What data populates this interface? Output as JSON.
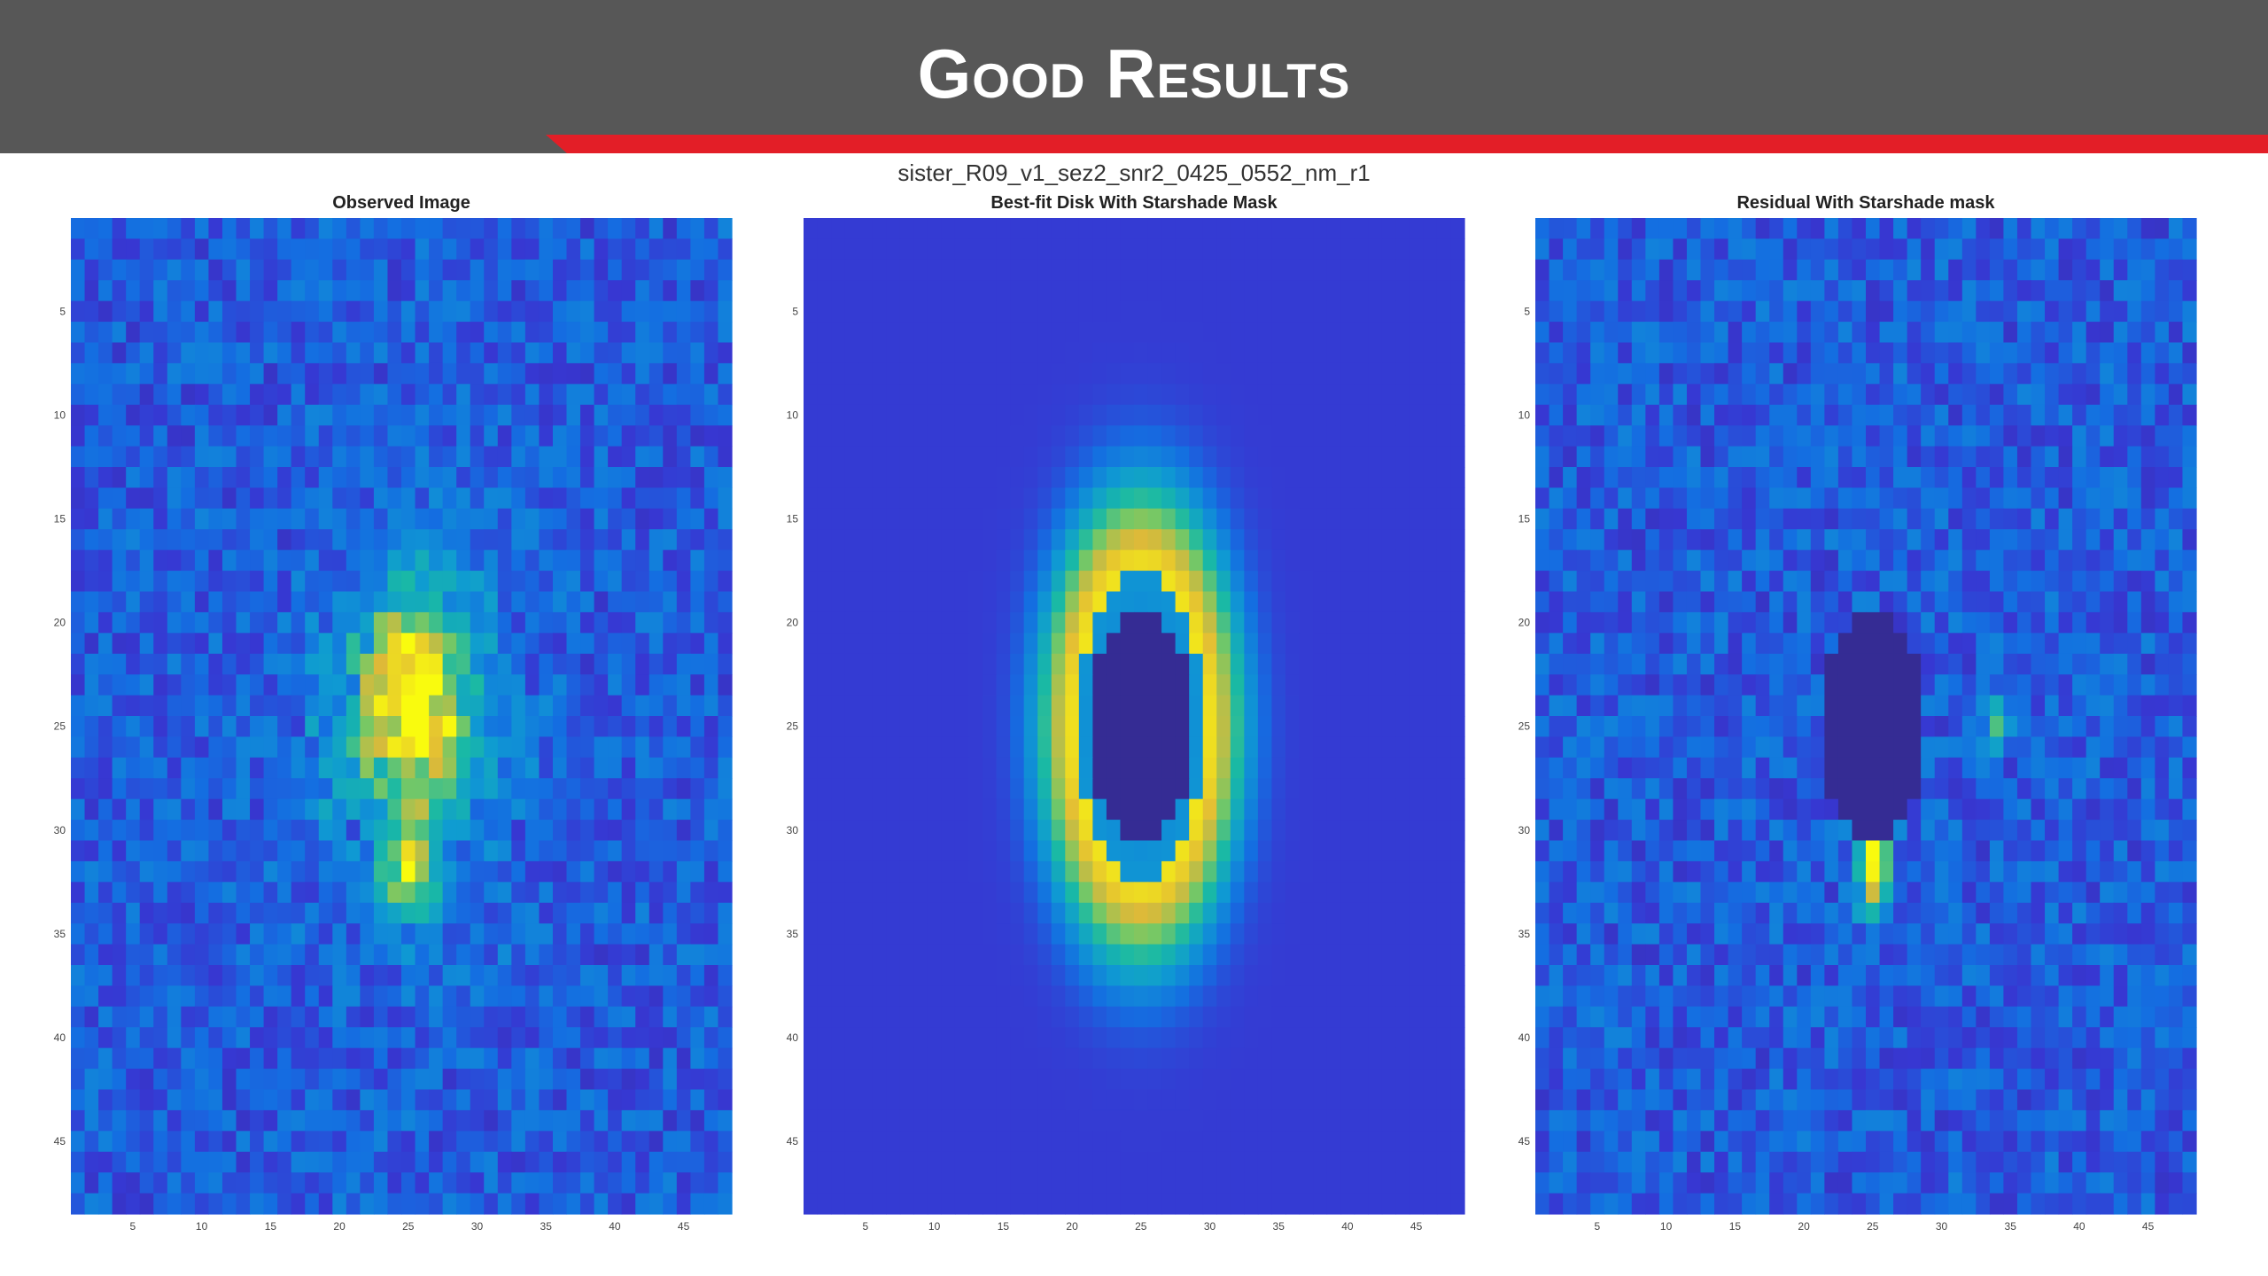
{
  "header": {
    "title": "Good Results",
    "colors": {
      "bar": "#575757",
      "accent": "#e31e27"
    }
  },
  "figure": {
    "suptitle": "sister_R09_v1_sez2_snr2_0425_0552_nm_r1"
  },
  "chart_data": [
    {
      "type": "heatmap",
      "title": "Observed Image",
      "content": "noisy observed disk, bright core near x=25, y=22-25 with tail to y=32",
      "xlim": [
        0.5,
        48.5
      ],
      "ylim": [
        0.5,
        48.5
      ],
      "x_ticks": [
        5,
        10,
        15,
        20,
        25,
        30,
        35,
        40,
        45
      ],
      "y_ticks": [
        5,
        10,
        15,
        20,
        25,
        30,
        35,
        40,
        45
      ],
      "colormap": "parula"
    },
    {
      "type": "heatmap",
      "title": "Best-fit Disk With Starshade Mask",
      "content": "smooth elliptical disk model centered at x=25, y=25 with masked center",
      "xlim": [
        0.5,
        48.5
      ],
      "ylim": [
        0.5,
        48.5
      ],
      "x_ticks": [
        5,
        10,
        15,
        20,
        25,
        30,
        35,
        40,
        45
      ],
      "y_ticks": [
        5,
        10,
        15,
        20,
        25,
        30,
        35,
        40,
        45
      ],
      "colormap": "parula"
    },
    {
      "type": "heatmap",
      "title": "Residual With Starshade mask",
      "content": "noisy residual with masked center and bright spot near x=25, y=31",
      "xlim": [
        0.5,
        48.5
      ],
      "ylim": [
        0.5,
        48.5
      ],
      "x_ticks": [
        5,
        10,
        15,
        20,
        25,
        30,
        35,
        40,
        45
      ],
      "y_ticks": [
        5,
        10,
        15,
        20,
        25,
        30,
        35,
        40,
        45
      ],
      "colormap": "parula"
    }
  ]
}
